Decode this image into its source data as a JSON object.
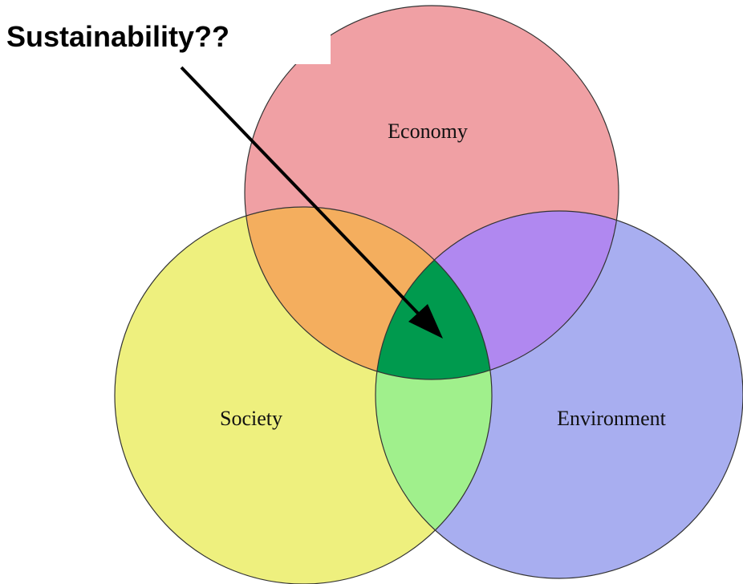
{
  "title": "Sustainability??",
  "circles": [
    {
      "label": "Economy"
    },
    {
      "label": "Society"
    },
    {
      "label": "Environment"
    }
  ]
}
